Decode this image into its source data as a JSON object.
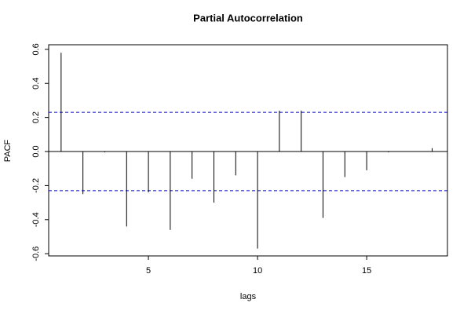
{
  "chart_data": {
    "type": "stem",
    "title": "Partial Autocorrelation",
    "x_label": "lags",
    "y_label": "PACF",
    "x": [
      1,
      2,
      3,
      4,
      5,
      6,
      7,
      8,
      9,
      10,
      11,
      12,
      13,
      14,
      15,
      16,
      17,
      18
    ],
    "values": [
      0.58,
      -0.25,
      -0.005,
      -0.44,
      -0.24,
      -0.46,
      -0.16,
      -0.3,
      -0.14,
      -0.57,
      0.24,
      0.24,
      -0.39,
      -0.15,
      -0.11,
      -0.005,
      0.0,
      0.02
    ],
    "color": "#000000",
    "reference_lines": [
      0.23,
      -0.23
    ],
    "reference_color": "#0000cc",
    "xlim": [
      0.43,
      18.7
    ],
    "xticks": [
      5,
      10,
      15
    ],
    "ylim": [
      -0.613,
      0.627
    ],
    "yticks": [
      -0.6,
      -0.4,
      -0.2,
      {
        "value": 0,
        "label": "0.0"
      },
      0.2,
      0.4,
      0.6
    ]
  }
}
